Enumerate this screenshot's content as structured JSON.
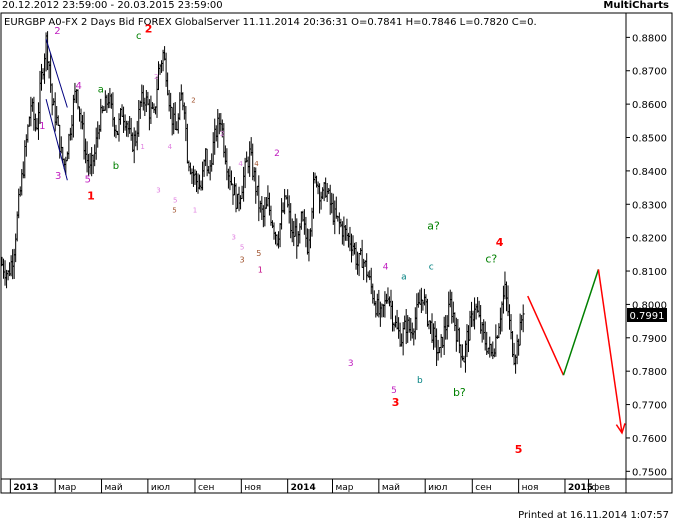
{
  "header": {
    "date_range": "20.12.2012 23:59:00 - 20.03.2015 23:59:00",
    "brand": "MultiCharts"
  },
  "footer": {
    "printed": "Printed at 16.11.2014 1:07:57"
  },
  "chart_data": {
    "type": "ohlc_bar",
    "title": "EURGBP A0-FX  2 Days  Bid  FOREX  GlobalServer  11.11.2014  20:36:31  O=0.7841  H=0.7846  L=0.7820  C=0.",
    "last_price_label": "0.7991",
    "ylim": [
      0.748,
      0.887
    ],
    "x_range_days": [
      0,
      820
    ],
    "y_ticks": [
      "0.8800",
      "0.8700",
      "0.8600",
      "0.8500",
      "0.8400",
      "0.8300",
      "0.8200",
      "0.8100",
      "0.8000",
      "0.7900",
      "0.7800",
      "0.7700",
      "0.7600",
      "0.7500"
    ],
    "x_ticks": [
      {
        "label": "2013",
        "day": 11,
        "bold": true
      },
      {
        "label": "мар",
        "day": 70
      },
      {
        "label": "май",
        "day": 131
      },
      {
        "label": "июл",
        "day": 192
      },
      {
        "label": "сен",
        "day": 254
      },
      {
        "label": "ноя",
        "day": 315
      },
      {
        "label": "2014",
        "day": 376,
        "bold": true
      },
      {
        "label": "мар",
        "day": 435
      },
      {
        "label": "май",
        "day": 496
      },
      {
        "label": "июл",
        "day": 557
      },
      {
        "label": "сен",
        "day": 619
      },
      {
        "label": "ноя",
        "day": 680
      },
      {
        "label": "2015",
        "day": 741,
        "bold": true
      },
      {
        "label": "фев",
        "day": 772
      }
    ],
    "price_path": [
      [
        0,
        0.812
      ],
      [
        8,
        0.809
      ],
      [
        15,
        0.815
      ],
      [
        22,
        0.83
      ],
      [
        30,
        0.845
      ],
      [
        38,
        0.86
      ],
      [
        45,
        0.852
      ],
      [
        52,
        0.868
      ],
      [
        58,
        0.879
      ],
      [
        62,
        0.872
      ],
      [
        66,
        0.86
      ],
      [
        72,
        0.855
      ],
      [
        78,
        0.845
      ],
      [
        82,
        0.842
      ],
      [
        88,
        0.85
      ],
      [
        94,
        0.86
      ],
      [
        98,
        0.865
      ],
      [
        104,
        0.855
      ],
      [
        110,
        0.845
      ],
      [
        116,
        0.84
      ],
      [
        122,
        0.845
      ],
      [
        128,
        0.855
      ],
      [
        134,
        0.858
      ],
      [
        140,
        0.862
      ],
      [
        146,
        0.856
      ],
      [
        152,
        0.852
      ],
      [
        158,
        0.858
      ],
      [
        164,
        0.855
      ],
      [
        170,
        0.848
      ],
      [
        176,
        0.85
      ],
      [
        182,
        0.86
      ],
      [
        188,
        0.862
      ],
      [
        194,
        0.858
      ],
      [
        200,
        0.856
      ],
      [
        206,
        0.87
      ],
      [
        212,
        0.875
      ],
      [
        216,
        0.87
      ],
      [
        222,
        0.858
      ],
      [
        228,
        0.852
      ],
      [
        232,
        0.855
      ],
      [
        236,
        0.862
      ],
      [
        240,
        0.86
      ],
      [
        244,
        0.845
      ],
      [
        250,
        0.84
      ],
      [
        256,
        0.837
      ],
      [
        262,
        0.835
      ],
      [
        268,
        0.845
      ],
      [
        272,
        0.838
      ],
      [
        276,
        0.845
      ],
      [
        282,
        0.852
      ],
      [
        288,
        0.856
      ],
      [
        292,
        0.848
      ],
      [
        298,
        0.84
      ],
      [
        304,
        0.835
      ],
      [
        310,
        0.83
      ],
      [
        316,
        0.836
      ],
      [
        322,
        0.842
      ],
      [
        326,
        0.845
      ],
      [
        332,
        0.838
      ],
      [
        338,
        0.83
      ],
      [
        344,
        0.826
      ],
      [
        350,
        0.83
      ],
      [
        356,
        0.825
      ],
      [
        362,
        0.82
      ],
      [
        368,
        0.826
      ],
      [
        374,
        0.832
      ],
      [
        378,
        0.826
      ],
      [
        382,
        0.82
      ],
      [
        386,
        0.822
      ],
      [
        390,
        0.818
      ],
      [
        394,
        0.825
      ],
      [
        398,
        0.822
      ],
      [
        402,
        0.818
      ],
      [
        406,
        0.825
      ],
      [
        410,
        0.835
      ],
      [
        414,
        0.838
      ],
      [
        418,
        0.834
      ],
      [
        422,
        0.832
      ],
      [
        426,
        0.835
      ],
      [
        432,
        0.83
      ],
      [
        438,
        0.826
      ],
      [
        444,
        0.824
      ],
      [
        450,
        0.822
      ],
      [
        456,
        0.82
      ],
      [
        462,
        0.818
      ],
      [
        468,
        0.812
      ],
      [
        474,
        0.814
      ],
      [
        480,
        0.81
      ],
      [
        486,
        0.805
      ],
      [
        492,
        0.8
      ],
      [
        498,
        0.796
      ],
      [
        504,
        0.8
      ],
      [
        508,
        0.804
      ],
      [
        514,
        0.797
      ],
      [
        520,
        0.792
      ],
      [
        526,
        0.79
      ],
      [
        532,
        0.794
      ],
      [
        538,
        0.792
      ],
      [
        544,
        0.796
      ],
      [
        550,
        0.8
      ],
      [
        554,
        0.803
      ],
      [
        558,
        0.798
      ],
      [
        562,
        0.795
      ],
      [
        566,
        0.792
      ],
      [
        570,
        0.788
      ],
      [
        576,
        0.785
      ],
      [
        580,
        0.79
      ],
      [
        586,
        0.795
      ],
      [
        590,
        0.8
      ],
      [
        594,
        0.797
      ],
      [
        598,
        0.792
      ],
      [
        602,
        0.788
      ],
      [
        608,
        0.784
      ],
      [
        612,
        0.79
      ],
      [
        618,
        0.795
      ],
      [
        622,
        0.8
      ],
      [
        626,
        0.797
      ],
      [
        630,
        0.793
      ],
      [
        634,
        0.79
      ],
      [
        638,
        0.788
      ],
      [
        644,
        0.785
      ],
      [
        650,
        0.79
      ],
      [
        654,
        0.795
      ],
      [
        658,
        0.8
      ],
      [
        662,
        0.804
      ],
      [
        666,
        0.798
      ],
      [
        670,
        0.79
      ],
      [
        674,
        0.785
      ],
      [
        678,
        0.788
      ],
      [
        682,
        0.792
      ],
      [
        686,
        0.799
      ]
    ],
    "trend_lines": [
      {
        "color": "#000080",
        "points": [
          [
            58,
            0.8795
          ],
          [
            86,
            0.859
          ]
        ]
      },
      {
        "color": "#000080",
        "points": [
          [
            58,
            0.8615
          ],
          [
            86,
            0.8372
          ]
        ]
      }
    ],
    "projection": [
      {
        "color": "#ff0000",
        "points": [
          [
            692,
            0.8025
          ],
          [
            739,
            0.7788
          ]
        ]
      },
      {
        "color": "#008000",
        "points": [
          [
            739,
            0.7788
          ],
          [
            785,
            0.8105
          ]
        ]
      },
      {
        "color": "#ff0000",
        "points": [
          [
            785,
            0.8105
          ],
          [
            816,
            0.7615
          ]
        ]
      }
    ],
    "wave_labels": [
      {
        "text": "2",
        "day": 73,
        "price": 0.881,
        "color": "#c020c0",
        "size": 10
      },
      {
        "text": "4",
        "day": 101,
        "price": 0.8645,
        "color": "#c020c0",
        "size": 10
      },
      {
        "text": "1",
        "day": 53,
        "price": 0.8525,
        "color": "#c020c0",
        "size": 10
      },
      {
        "text": "3",
        "day": 74,
        "price": 0.8375,
        "color": "#c020c0",
        "size": 10
      },
      {
        "text": "5",
        "day": 113,
        "price": 0.8365,
        "color": "#c020c0",
        "size": 10
      },
      {
        "text": "1",
        "day": 117,
        "price": 0.8315,
        "color": "#ff0000",
        "size": 11,
        "bold": true
      },
      {
        "text": "a",
        "day": 130,
        "price": 0.8635,
        "color": "#008000",
        "size": 10
      },
      {
        "text": "b",
        "day": 150,
        "price": 0.8405,
        "color": "#008000",
        "size": 10
      },
      {
        "text": "c",
        "day": 180,
        "price": 0.8795,
        "color": "#008000",
        "size": 10
      },
      {
        "text": "2",
        "day": 193,
        "price": 0.8815,
        "color": "#ff0000",
        "size": 11,
        "bold": true
      },
      {
        "text": "2",
        "day": 203,
        "price": 0.8675,
        "color": "#e080e0",
        "size": 7
      },
      {
        "text": "1",
        "day": 185,
        "price": 0.8465,
        "color": "#e080e0",
        "size": 7
      },
      {
        "text": "3",
        "day": 206,
        "price": 0.8335,
        "color": "#e080e0",
        "size": 7
      },
      {
        "text": "4",
        "day": 221,
        "price": 0.8465,
        "color": "#e080e0",
        "size": 7
      },
      {
        "text": "5",
        "day": 228,
        "price": 0.8305,
        "color": "#e080e0",
        "size": 7
      },
      {
        "text": "5",
        "day": 227,
        "price": 0.8275,
        "color": "#a0522d",
        "size": 7
      },
      {
        "text": "1",
        "day": 254,
        "price": 0.8275,
        "color": "#e080e0",
        "size": 7
      },
      {
        "text": "2",
        "day": 252,
        "price": 0.8605,
        "color": "#a0522d",
        "size": 7
      },
      {
        "text": "2",
        "day": 290,
        "price": 0.8505,
        "color": "#e080e0",
        "size": 7
      },
      {
        "text": "3",
        "day": 305,
        "price": 0.8195,
        "color": "#e080e0",
        "size": 7
      },
      {
        "text": "4",
        "day": 314,
        "price": 0.8415,
        "color": "#e080e0",
        "size": 7
      },
      {
        "text": "4",
        "day": 335,
        "price": 0.8415,
        "color": "#a0522d",
        "size": 7
      },
      {
        "text": "5",
        "day": 316,
        "price": 0.8165,
        "color": "#e080e0",
        "size": 7
      },
      {
        "text": "3",
        "day": 316,
        "price": 0.8125,
        "color": "#a0522d",
        "size": 8
      },
      {
        "text": "5",
        "day": 338,
        "price": 0.8145,
        "color": "#a0522d",
        "size": 8
      },
      {
        "text": "1",
        "day": 340,
        "price": 0.8095,
        "color": "#c00080",
        "size": 8
      },
      {
        "text": "2",
        "day": 362,
        "price": 0.8445,
        "color": "#c020c0",
        "size": 9
      },
      {
        "text": "3",
        "day": 459,
        "price": 0.7815,
        "color": "#c020c0",
        "size": 9
      },
      {
        "text": "4",
        "day": 505,
        "price": 0.8105,
        "color": "#c020c0",
        "size": 9
      },
      {
        "text": "5",
        "day": 516,
        "price": 0.7735,
        "color": "#c020c0",
        "size": 9
      },
      {
        "text": "3",
        "day": 518,
        "price": 0.7695,
        "color": "#ff0000",
        "size": 11,
        "bold": true
      },
      {
        "text": "a",
        "day": 529,
        "price": 0.8075,
        "color": "#008080",
        "size": 9
      },
      {
        "text": "b",
        "day": 550,
        "price": 0.7765,
        "color": "#008080",
        "size": 9
      },
      {
        "text": "c",
        "day": 565,
        "price": 0.8105,
        "color": "#008080",
        "size": 9
      },
      {
        "text": "a?",
        "day": 568,
        "price": 0.8225,
        "color": "#008000",
        "size": 11
      },
      {
        "text": "b?",
        "day": 602,
        "price": 0.7725,
        "color": "#008000",
        "size": 11
      },
      {
        "text": "c?",
        "day": 644,
        "price": 0.8125,
        "color": "#008000",
        "size": 11
      },
      {
        "text": "4",
        "day": 655,
        "price": 0.8175,
        "color": "#ff0000",
        "size": 11,
        "bold": true
      },
      {
        "text": "5",
        "day": 680,
        "price": 0.7555,
        "color": "#ff0000",
        "size": 11,
        "bold": true
      }
    ]
  }
}
